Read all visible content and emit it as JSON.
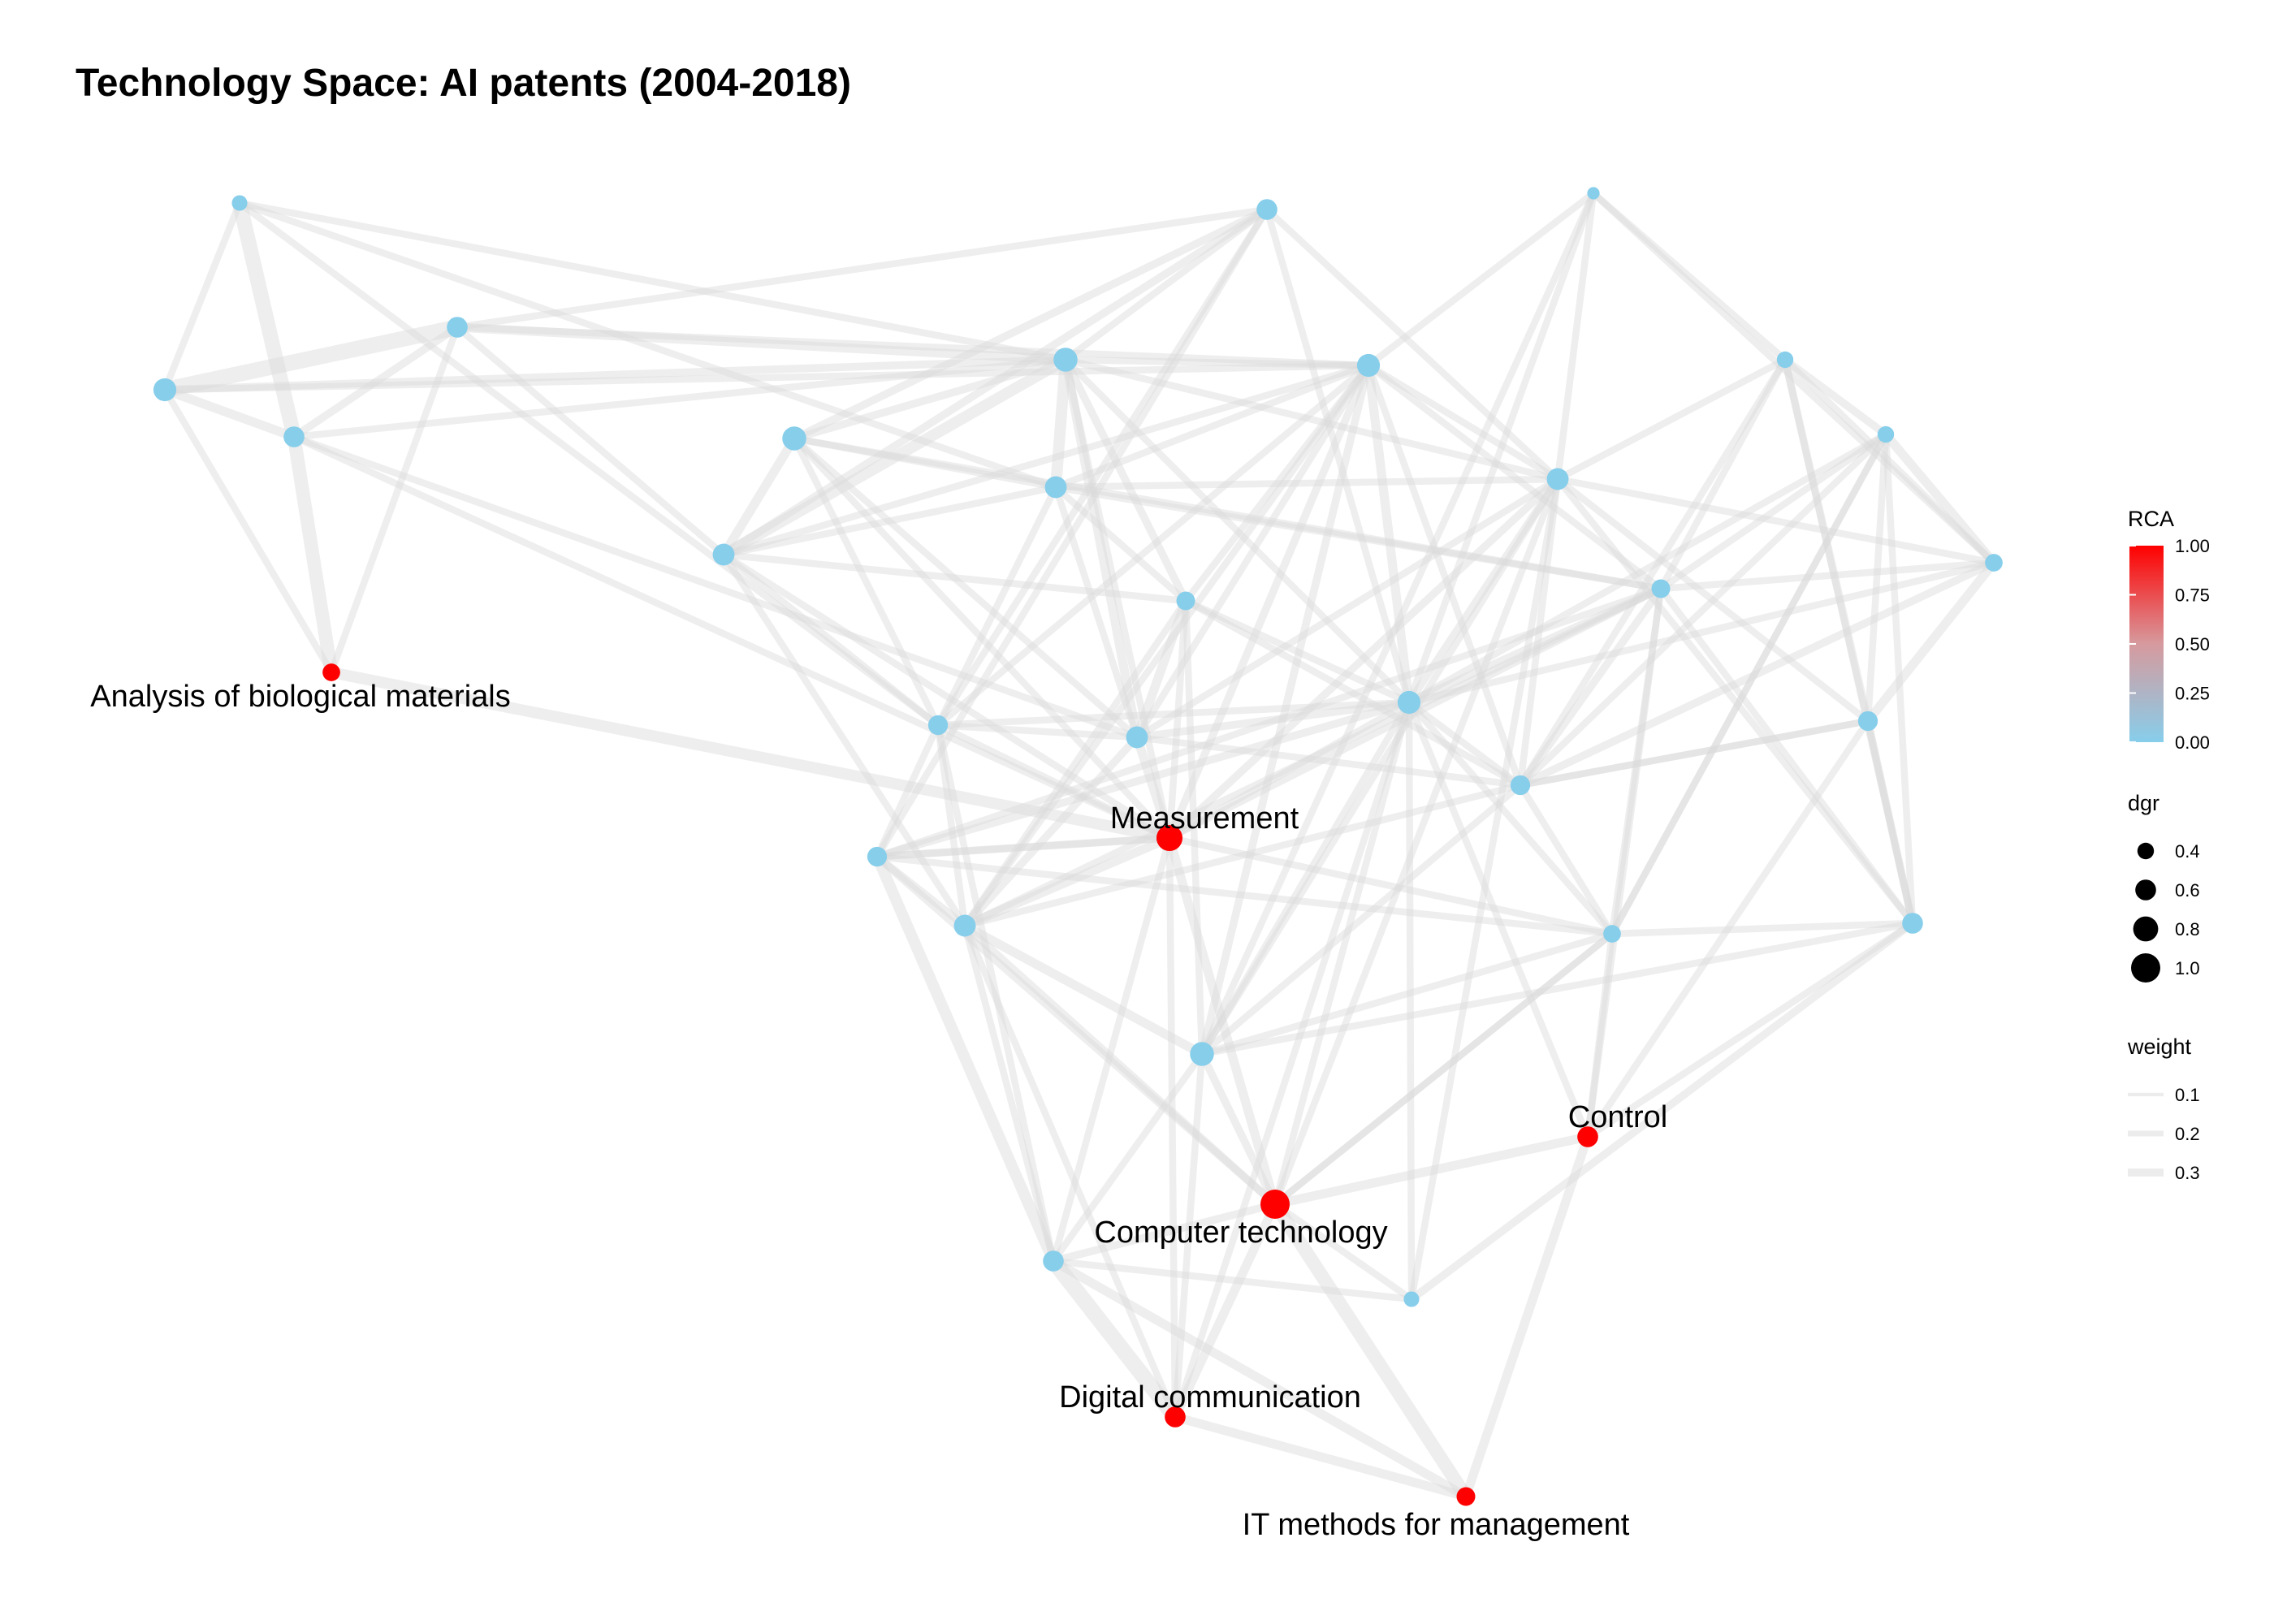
{
  "title": "Technology Space: AI patents (2004-2018)",
  "colors": {
    "rca_low": "#87ceeb",
    "rca_high": "#ff0000",
    "edge": "#d9d9d9",
    "background": "#ffffff"
  },
  "legend": {
    "rca": {
      "title": "RCA",
      "ticks": [
        "1.00",
        "0.75",
        "0.50",
        "0.25",
        "0.00"
      ]
    },
    "dgr": {
      "title": "dgr",
      "items": [
        {
          "label": "0.4",
          "value": 0.4
        },
        {
          "label": "0.6",
          "value": 0.6
        },
        {
          "label": "0.8",
          "value": 0.8
        },
        {
          "label": "1.0",
          "value": 1.0
        }
      ]
    },
    "weight": {
      "title": "weight",
      "items": [
        {
          "label": "0.1",
          "value": 0.1
        },
        {
          "label": "0.2",
          "value": 0.2
        },
        {
          "label": "0.3",
          "value": 0.3
        }
      ]
    }
  },
  "nodes": [
    {
      "id": "n1",
      "rca": 0,
      "dgr": 0.35
    },
    {
      "id": "n2",
      "rca": 0,
      "dgr": 0.6
    },
    {
      "id": "n3",
      "rca": 0,
      "dgr": 0.7
    },
    {
      "id": "n4",
      "rca": 0,
      "dgr": 0.6
    },
    {
      "id": "n5",
      "rca": 1,
      "dgr": 0.45,
      "label": "Analysis of biological materials"
    },
    {
      "id": "n6",
      "rca": 0,
      "dgr": 0.75
    },
    {
      "id": "n7",
      "rca": 0,
      "dgr": 0.65
    },
    {
      "id": "n8",
      "rca": 0,
      "dgr": 0.6
    },
    {
      "id": "n9",
      "rca": 0,
      "dgr": 0.75
    },
    {
      "id": "n10",
      "rca": 0,
      "dgr": 0.65
    },
    {
      "id": "n11",
      "rca": 0,
      "dgr": 0.5
    },
    {
      "id": "n12",
      "rca": 0,
      "dgr": 0.65
    },
    {
      "id": "n13",
      "rca": 1,
      "dgr": 0.85,
      "label": "Measurement"
    },
    {
      "id": "n14",
      "rca": 0,
      "dgr": 0.55
    },
    {
      "id": "n15",
      "rca": 0,
      "dgr": 0.65
    },
    {
      "id": "n16",
      "rca": 0,
      "dgr": 0.55
    },
    {
      "id": "n17",
      "rca": 0,
      "dgr": 0.7
    },
    {
      "id": "n18",
      "rca": 0,
      "dgr": 0.65
    },
    {
      "id": "n19",
      "rca": 0,
      "dgr": 0.2
    },
    {
      "id": "n20",
      "rca": 0,
      "dgr": 0.7
    },
    {
      "id": "n21",
      "rca": 0,
      "dgr": 0.5
    },
    {
      "id": "n22",
      "rca": 0,
      "dgr": 0.55
    },
    {
      "id": "n23",
      "rca": 0,
      "dgr": 0.75
    },
    {
      "id": "n24",
      "rca": 0,
      "dgr": 0.45
    },
    {
      "id": "n25",
      "rca": 1,
      "dgr": 0.6,
      "label": "Control"
    },
    {
      "id": "n26",
      "rca": 0,
      "dgr": 0.4
    },
    {
      "id": "n27",
      "rca": 0,
      "dgr": 0.4
    },
    {
      "id": "n28",
      "rca": 0,
      "dgr": 0.45
    },
    {
      "id": "n29",
      "rca": 0,
      "dgr": 0.55
    },
    {
      "id": "n30",
      "rca": 0,
      "dgr": 0.6
    },
    {
      "id": "n31",
      "rca": 0,
      "dgr": 0.4
    },
    {
      "id": "n32",
      "rca": 0,
      "dgr": 0.55
    },
    {
      "id": "n33",
      "rca": 0,
      "dgr": 0.35
    },
    {
      "id": "n34",
      "rca": 1,
      "dgr": 1.0,
      "label": "Computer technology"
    },
    {
      "id": "n35",
      "rca": 0,
      "dgr": 0.6
    },
    {
      "id": "n36",
      "rca": 1,
      "dgr": 0.6,
      "label": "Digital communication"
    },
    {
      "id": "n37",
      "rca": 1,
      "dgr": 0.5,
      "label": "IT methods for management"
    }
  ],
  "edges": [
    [
      "n1",
      "n3",
      0.1
    ],
    [
      "n1",
      "n4",
      0.28
    ],
    [
      "n1",
      "n9",
      0.1
    ],
    [
      "n1",
      "n10",
      0.1
    ],
    [
      "n1",
      "n14",
      0.1
    ],
    [
      "n3",
      "n2",
      0.3
    ],
    [
      "n3",
      "n4",
      0.15
    ],
    [
      "n2",
      "n4",
      0.12
    ],
    [
      "n3",
      "n5",
      0.1
    ],
    [
      "n4",
      "n5",
      0.25
    ],
    [
      "n2",
      "n9",
      0.15
    ],
    [
      "n2",
      "n5",
      0.1
    ],
    [
      "n2",
      "n7",
      0.1
    ],
    [
      "n2",
      "n8",
      0.1
    ],
    [
      "n2",
      "n17",
      0.1
    ],
    [
      "n3",
      "n9",
      0.12
    ],
    [
      "n3",
      "n17",
      0.1
    ],
    [
      "n4",
      "n9",
      0.1
    ],
    [
      "n4",
      "n13",
      0.1
    ],
    [
      "n4",
      "n12",
      0.1
    ],
    [
      "n5",
      "n13",
      0.2
    ],
    [
      "n6",
      "n9",
      0.12
    ],
    [
      "n6",
      "n7",
      0.15
    ],
    [
      "n6",
      "n8",
      0.12
    ],
    [
      "n6",
      "n10",
      0.1
    ],
    [
      "n6",
      "n12",
      0.1
    ],
    [
      "n6",
      "n21",
      0.1
    ],
    [
      "n6",
      "n13",
      0.1
    ],
    [
      "n7",
      "n9",
      0.2
    ],
    [
      "n7",
      "n8",
      0.12
    ],
    [
      "n7",
      "n10",
      0.1
    ],
    [
      "n7",
      "n11",
      0.1
    ],
    [
      "n7",
      "n17",
      0.1
    ],
    [
      "n7",
      "n13",
      0.1
    ],
    [
      "n7",
      "n15",
      0.1
    ],
    [
      "n8",
      "n9",
      0.1
    ],
    [
      "n8",
      "n16",
      0.1
    ],
    [
      "n8",
      "n18",
      0.1
    ],
    [
      "n8",
      "n14",
      0.1
    ],
    [
      "n8",
      "n20",
      0.1
    ],
    [
      "n9",
      "n10",
      0.2
    ],
    [
      "n9",
      "n11",
      0.12
    ],
    [
      "n9",
      "n12",
      0.15
    ],
    [
      "n9",
      "n17",
      0.1
    ],
    [
      "n9",
      "n13",
      0.1
    ],
    [
      "n9",
      "n18",
      0.1
    ],
    [
      "n9",
      "n20",
      0.1
    ],
    [
      "n10",
      "n11",
      0.1
    ],
    [
      "n10",
      "n12",
      0.1
    ],
    [
      "n10",
      "n17",
      0.1
    ],
    [
      "n10",
      "n14",
      0.1
    ],
    [
      "n10",
      "n18",
      0.1
    ],
    [
      "n11",
      "n12",
      0.15
    ],
    [
      "n11",
      "n13",
      0.1
    ],
    [
      "n11",
      "n15",
      0.1
    ],
    [
      "n11",
      "n22",
      0.1
    ],
    [
      "n11",
      "n17",
      0.1
    ],
    [
      "n11",
      "n20",
      0.1
    ],
    [
      "n11",
      "n23",
      0.1
    ],
    [
      "n12",
      "n13",
      0.15
    ],
    [
      "n12",
      "n15",
      0.12
    ],
    [
      "n12",
      "n17",
      0.1
    ],
    [
      "n12",
      "n20",
      0.12
    ],
    [
      "n12",
      "n22",
      0.1
    ],
    [
      "n12",
      "n18",
      0.1
    ],
    [
      "n13",
      "n15",
      0.15
    ],
    [
      "n13",
      "n16",
      0.12
    ],
    [
      "n13",
      "n17",
      0.12
    ],
    [
      "n13",
      "n18",
      0.12
    ],
    [
      "n13",
      "n21",
      0.1
    ],
    [
      "n13",
      "n20",
      0.1
    ],
    [
      "n13",
      "n34",
      0.15
    ],
    [
      "n13",
      "n35",
      0.1
    ],
    [
      "n13",
      "n36",
      0.1
    ],
    [
      "n13",
      "n24",
      0.1
    ],
    [
      "n14",
      "n15",
      0.1
    ],
    [
      "n14",
      "n20",
      0.1
    ],
    [
      "n14",
      "n16",
      0.1
    ],
    [
      "n14",
      "n17",
      0.1
    ],
    [
      "n15",
      "n16",
      0.12
    ],
    [
      "n15",
      "n17",
      0.1
    ],
    [
      "n15",
      "n23",
      0.15
    ],
    [
      "n15",
      "n34",
      0.12
    ],
    [
      "n15",
      "n35",
      0.1
    ],
    [
      "n15",
      "n21",
      0.1
    ],
    [
      "n15",
      "n22",
      0.1
    ],
    [
      "n15",
      "n36",
      0.1
    ],
    [
      "n16",
      "n20",
      0.12
    ],
    [
      "n16",
      "n21",
      0.1
    ],
    [
      "n16",
      "n24",
      0.1
    ],
    [
      "n17",
      "n19",
      0.1
    ],
    [
      "n17",
      "n20",
      0.15
    ],
    [
      "n17",
      "n18",
      0.1
    ],
    [
      "n17",
      "n21",
      0.1
    ],
    [
      "n17",
      "n22",
      0.1
    ],
    [
      "n17",
      "n23",
      0.12
    ],
    [
      "n18",
      "n20",
      0.12
    ],
    [
      "n18",
      "n19",
      0.1
    ],
    [
      "n18",
      "n22",
      0.1
    ],
    [
      "n18",
      "n23",
      0.1
    ],
    [
      "n18",
      "n26",
      0.1
    ],
    [
      "n19",
      "n20",
      0.1
    ],
    [
      "n19",
      "n23",
      0.1
    ],
    [
      "n19",
      "n28",
      0.1
    ],
    [
      "n19",
      "n26",
      0.1
    ],
    [
      "n20",
      "n21",
      0.12
    ],
    [
      "n20",
      "n22",
      0.1
    ],
    [
      "n20",
      "n23",
      0.1
    ],
    [
      "n20",
      "n24",
      0.1
    ],
    [
      "n20",
      "n25",
      0.1
    ],
    [
      "n20",
      "n27",
      0.1
    ],
    [
      "n20",
      "n28",
      0.1
    ],
    [
      "n20",
      "n33",
      0.1
    ],
    [
      "n20",
      "n34",
      0.1
    ],
    [
      "n20",
      "n36",
      0.1
    ],
    [
      "n21",
      "n22",
      0.12
    ],
    [
      "n21",
      "n26",
      0.1
    ],
    [
      "n21",
      "n27",
      0.1
    ],
    [
      "n21",
      "n28",
      0.1
    ],
    [
      "n21",
      "n24",
      0.1
    ],
    [
      "n21",
      "n25",
      0.1
    ],
    [
      "n21",
      "n31",
      0.1
    ],
    [
      "n22",
      "n23",
      0.1
    ],
    [
      "n22",
      "n24",
      0.1
    ],
    [
      "n22",
      "n27",
      0.1
    ],
    [
      "n22",
      "n28",
      0.12
    ],
    [
      "n22",
      "n29",
      0.1
    ],
    [
      "n22",
      "n26",
      0.1
    ],
    [
      "n23",
      "n24",
      0.1
    ],
    [
      "n23",
      "n34",
      0.12
    ],
    [
      "n23",
      "n35",
      0.1
    ],
    [
      "n23",
      "n36",
      0.1
    ],
    [
      "n23",
      "n31",
      0.1
    ],
    [
      "n24",
      "n25",
      0.1
    ],
    [
      "n24",
      "n31",
      0.1
    ],
    [
      "n24",
      "n27",
      0.1
    ],
    [
      "n24",
      "n34",
      0.1
    ],
    [
      "n25",
      "n34",
      0.15
    ],
    [
      "n25",
      "n37",
      0.15
    ],
    [
      "n25",
      "n29",
      0.1
    ],
    [
      "n25",
      "n31",
      0.1
    ],
    [
      "n26",
      "n27",
      0.12
    ],
    [
      "n26",
      "n28",
      0.1
    ],
    [
      "n26",
      "n29",
      0.12
    ],
    [
      "n27",
      "n28",
      0.15
    ],
    [
      "n27",
      "n29",
      0.1
    ],
    [
      "n27",
      "n31",
      0.1
    ],
    [
      "n28",
      "n29",
      0.15
    ],
    [
      "n28",
      "n32",
      0.1
    ],
    [
      "n29",
      "n30",
      0.12
    ],
    [
      "n29",
      "n31",
      0.1
    ],
    [
      "n29",
      "n32",
      0.1
    ],
    [
      "n29",
      "n22",
      0.1
    ],
    [
      "n30",
      "n31",
      0.1
    ],
    [
      "n30",
      "n32",
      0.1
    ],
    [
      "n30",
      "n33",
      0.12
    ],
    [
      "n32",
      "n33",
      0.1
    ],
    [
      "n32",
      "n34",
      0.1
    ],
    [
      "n16",
      "n34",
      0.12
    ],
    [
      "n34",
      "n35",
      0.12
    ],
    [
      "n34",
      "n36",
      0.15
    ],
    [
      "n34",
      "n37",
      0.25
    ],
    [
      "n34",
      "n24",
      0.1
    ],
    [
      "n35",
      "n36",
      0.3
    ],
    [
      "n35",
      "n37",
      0.15
    ],
    [
      "n35",
      "n16",
      0.2
    ],
    [
      "n35",
      "n14",
      0.1
    ],
    [
      "n36",
      "n37",
      0.15
    ],
    [
      "n33",
      "n34",
      0.1
    ],
    [
      "n33",
      "n35",
      0.1
    ],
    [
      "n14",
      "n13",
      0.1
    ],
    [
      "n16",
      "n13",
      0.1
    ],
    [
      "n27",
      "n24",
      0.1
    ],
    [
      "n31",
      "n26",
      0.1
    ],
    [
      "n10",
      "n21",
      0.1
    ],
    [
      "n7",
      "n14",
      0.1
    ],
    [
      "n6",
      "n14",
      0.1
    ],
    [
      "n12",
      "n14",
      0.1
    ]
  ]
}
